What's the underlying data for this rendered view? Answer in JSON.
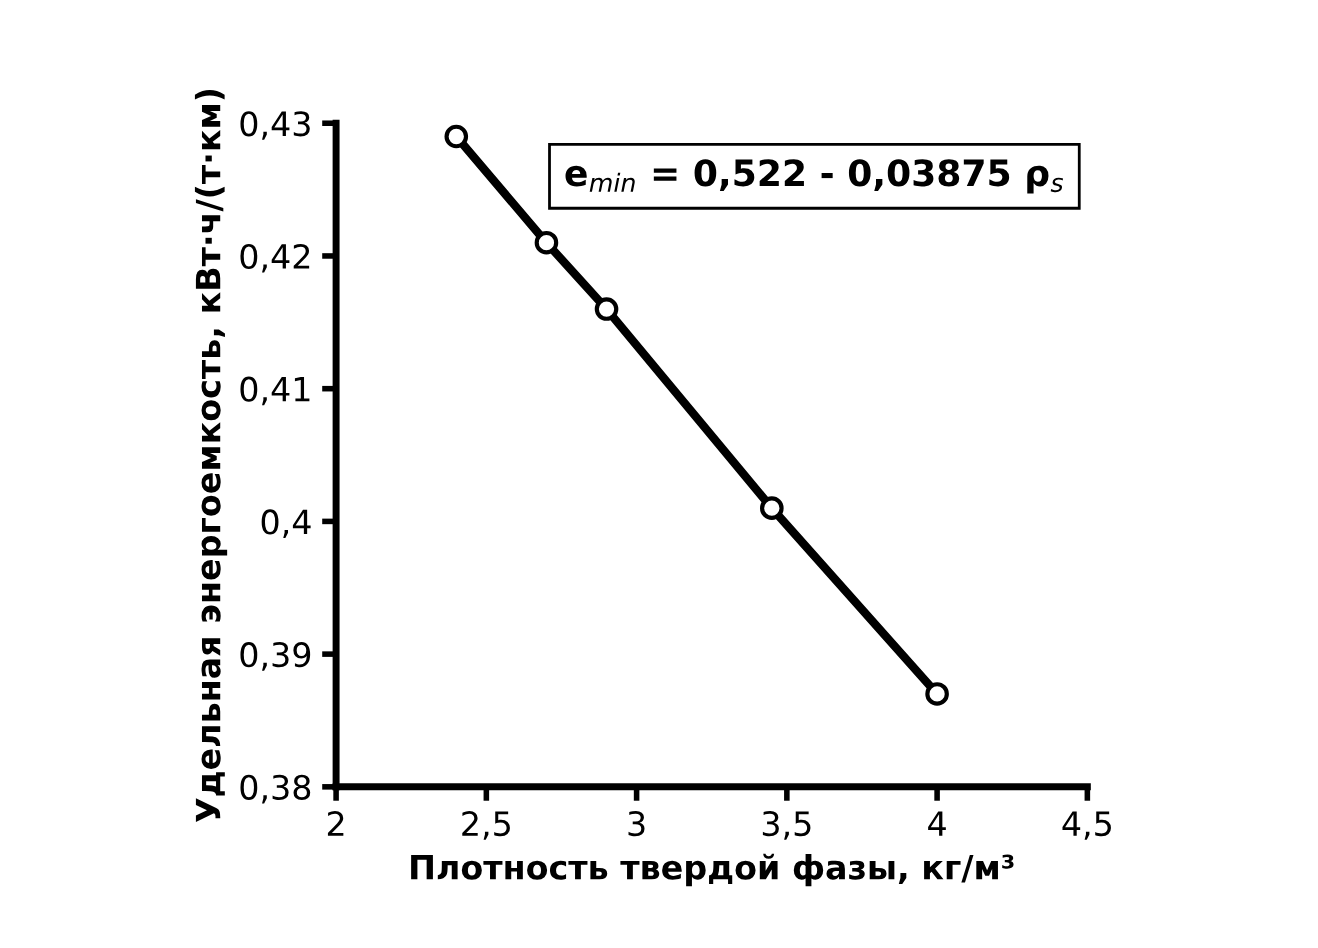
{
  "chart_data": {
    "type": "line",
    "x": [
      2.4,
      2.7,
      2.9,
      3.45,
      4.0
    ],
    "series": [
      {
        "color": "#000000",
        "values": [
          0.429,
          0.421,
          0.416,
          0.401,
          0.387
        ]
      }
    ],
    "xlabel": "Плотность твердой фазы, кг/м³",
    "ylabel": "Удельная энергоемкость, кВт·ч/(т·км)",
    "xlim": [
      2,
      4.5
    ],
    "xticks": [
      2,
      {
        "value": 2.5,
        "label": "2,5"
      },
      3,
      {
        "value": 3.5,
        "label": "3,5"
      },
      4,
      {
        "value": 4.5,
        "label": "4,5"
      }
    ],
    "ylim": [
      0.38,
      0.43
    ],
    "yticks": [
      {
        "value": 0.38,
        "label": "0,38"
      },
      {
        "value": 0.39,
        "label": "0,39"
      },
      {
        "value": 0.4,
        "label": "0,4"
      },
      {
        "value": 0.41,
        "label": "0,41"
      },
      {
        "value": 0.42,
        "label": "0,42"
      },
      {
        "value": 0.43,
        "label": "0,43"
      }
    ],
    "annotations": [
      "e$_{min}$ = 0,522 - 0,03875 ρ$_{s}$"
    ],
    "marker": "circle",
    "line_style": "solid",
    "grid": false,
    "legend": false
  }
}
